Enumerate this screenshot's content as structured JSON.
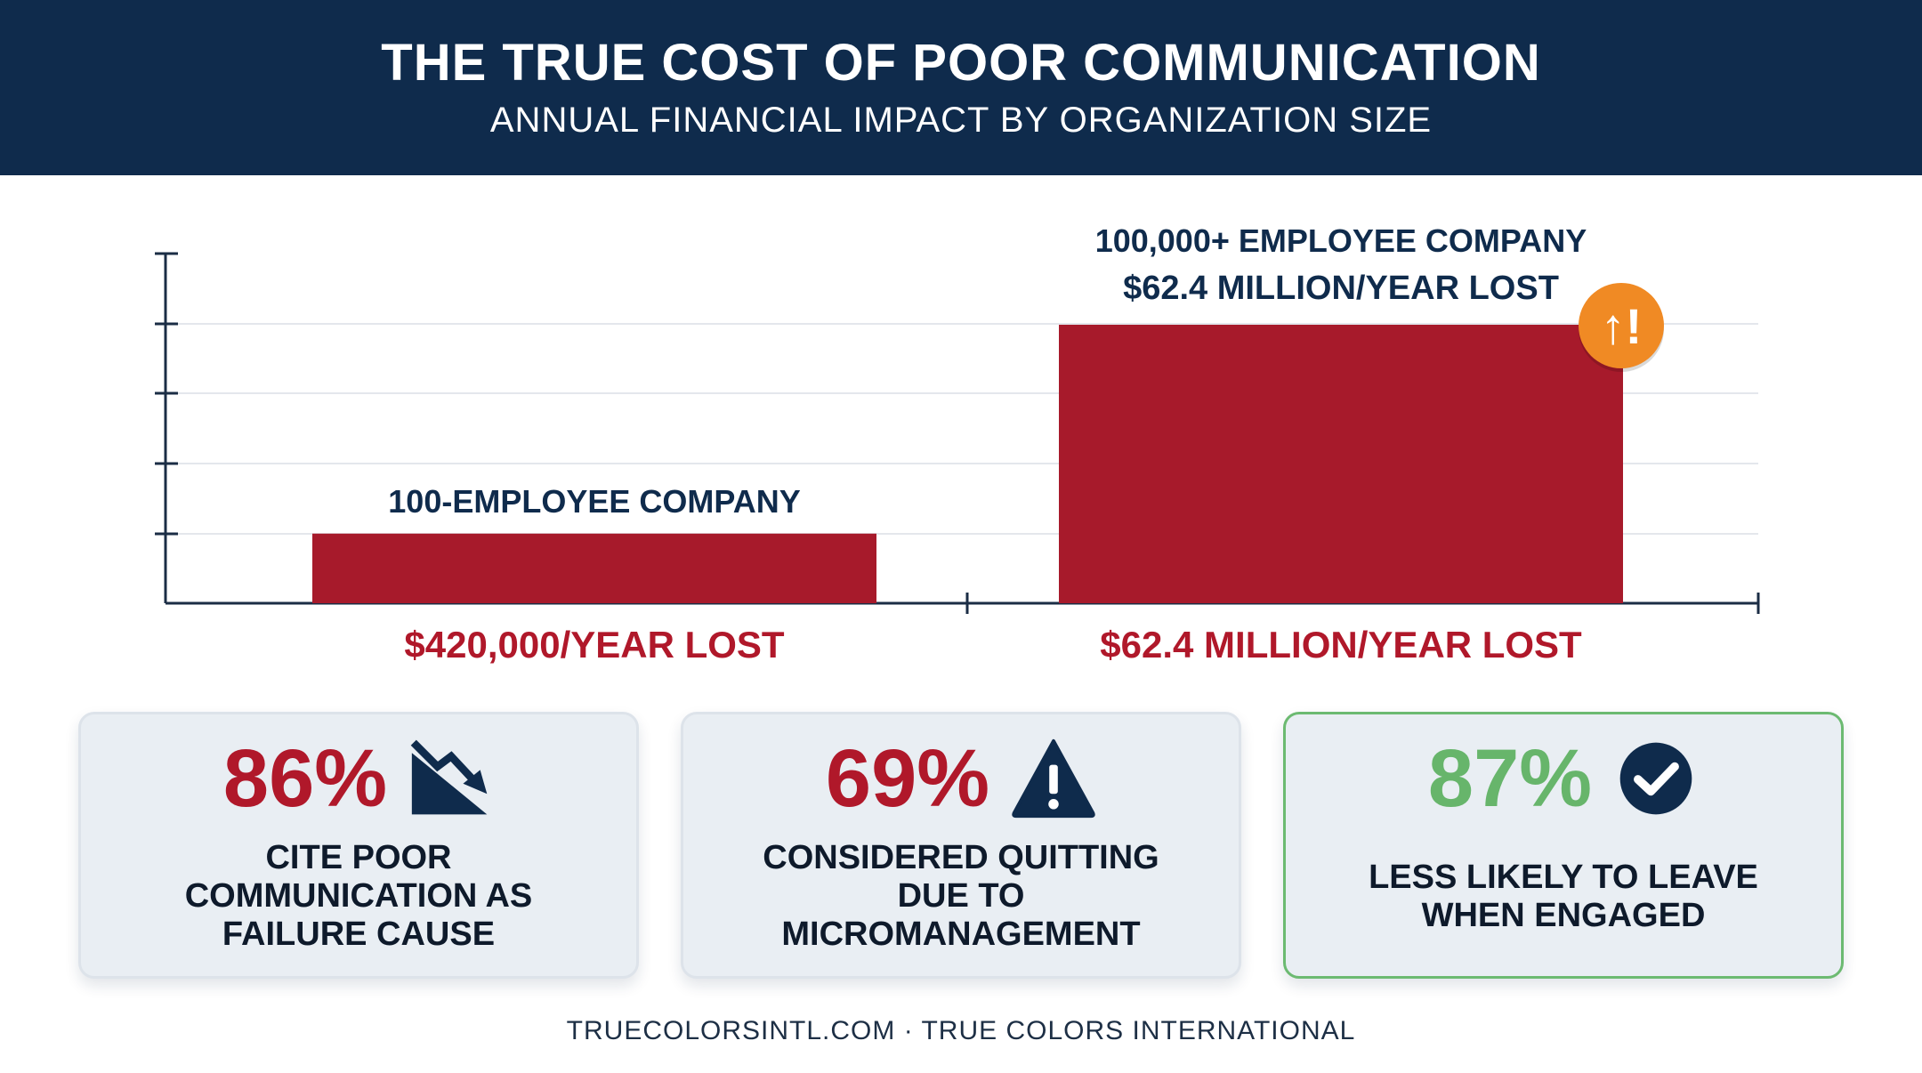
{
  "header": {
    "title": "THE TRUE COST OF POOR COMMUNICATION",
    "subtitle": "ANNUAL FINANCIAL IMPACT BY ORGANIZATION SIZE"
  },
  "chart_data": {
    "type": "bar",
    "categories": [
      "100-EMPLOYEE COMPANY",
      "100,000+ EMPLOYEE COMPANY"
    ],
    "values_display": [
      "$420,000/YEAR LOST",
      "$62.4 MILLION/YEAR LOST"
    ],
    "top_value_label": "$62.4 MILLION/YEAR LOST",
    "relative_heights": [
      0.25,
      1.0
    ],
    "bar_color": "#a71a2b",
    "axis_color": "#1b2d45",
    "grid": true,
    "alert_badge_color": "#f08a24",
    "alert_badge_glyph": "↑!"
  },
  "stats": [
    {
      "value": "86%",
      "lines": [
        "CITE POOR",
        "COMMUNICATION AS",
        "FAILURE CAUSE"
      ],
      "icon": "trending-down-icon",
      "color": "#b0182a"
    },
    {
      "value": "69%",
      "lines": [
        "CONSIDERED QUITTING",
        "DUE TO",
        "MICROMANAGEMENT"
      ],
      "icon": "warning-icon",
      "color": "#b0182a"
    },
    {
      "value": "87%",
      "lines": [
        "LESS LIKELY TO LEAVE",
        "WHEN ENGAGED"
      ],
      "icon": "check-circle-icon",
      "color": "#67b56b"
    }
  ],
  "footer": "TRUECOLORSINTL.COM · TRUE COLORS INTERNATIONAL"
}
